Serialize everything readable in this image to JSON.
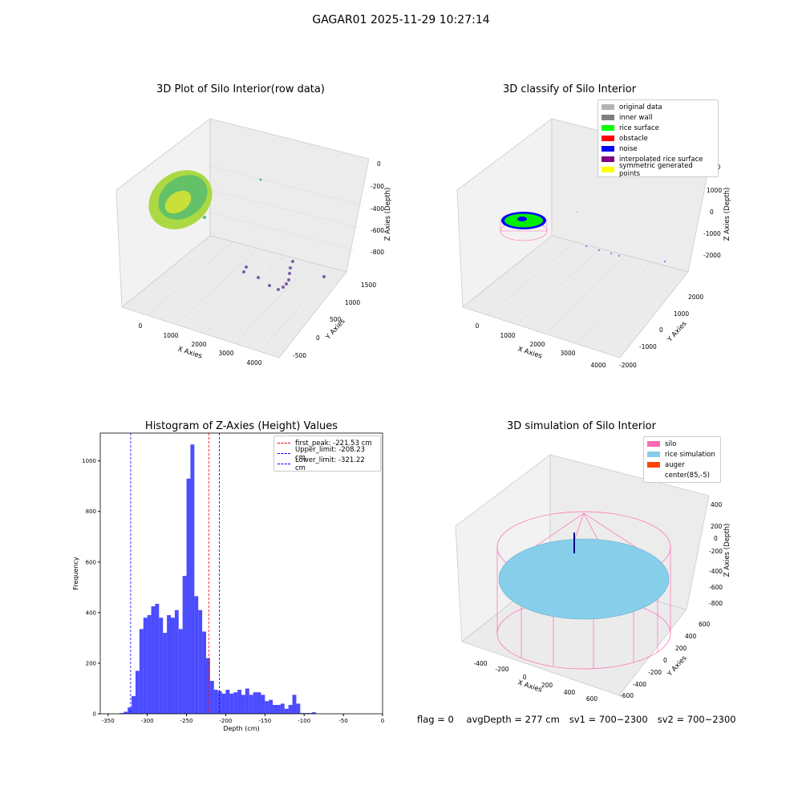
{
  "suptitle": "GAGAR01 2025-11-29 10:27:14",
  "panels": {
    "raw": {
      "title": "3D Plot of Silo Interior(row data)",
      "xlabel": "X Axies",
      "ylabel": "Y Axies",
      "zlabel": "Z Axies (Depth)",
      "xticks": [
        "0",
        "1000",
        "2000",
        "3000",
        "4000"
      ],
      "yticks": [
        "-500",
        "0",
        "500",
        "1000",
        "1500"
      ],
      "zticks": [
        "0",
        "-200",
        "-400",
        "-600",
        "-800"
      ]
    },
    "classify": {
      "title": "3D classify of Silo Interior",
      "xlabel": "X Axies",
      "ylabel": "Y Axies",
      "zlabel": "Z Axies (Depth)",
      "xticks": [
        "0",
        "1000",
        "2000",
        "3000",
        "4000"
      ],
      "yticks": [
        "-2000",
        "-1000",
        "0",
        "1000",
        "2000"
      ],
      "zticks": [
        "2000",
        "1000",
        "0",
        "-1000",
        "-2000"
      ],
      "zticks_partial": "200",
      "legend": [
        {
          "label": "original data",
          "color": "#b3b3b3"
        },
        {
          "label": "inner wall",
          "color": "#808080"
        },
        {
          "label": "rice surface",
          "color": "#00ff00"
        },
        {
          "label": "obstacle",
          "color": "#ff0000"
        },
        {
          "label": "noise",
          "color": "#0000ff"
        },
        {
          "label": "interpolated rice surface",
          "color": "#800080"
        },
        {
          "label": "symmetric generated points",
          "color": "#ffff00"
        }
      ]
    },
    "simulation": {
      "title": "3D simulation of Silo Interior",
      "xlabel": "X Axies",
      "ylabel": "Y Axies",
      "zlabel": "Z Axies (Depth)",
      "xticks": [
        "-400",
        "-200",
        "0",
        "200",
        "400",
        "600"
      ],
      "yticks": [
        "-600",
        "-400",
        "-200",
        "0",
        "200",
        "400",
        "600"
      ],
      "zticks": [
        "400",
        "200",
        "0",
        "-200",
        "-400",
        "-600",
        "-800"
      ],
      "legend": [
        {
          "label": "silo",
          "color": "#ff69b4"
        },
        {
          "label": "rice simulation",
          "color": "#87ceeb"
        },
        {
          "label": "auger",
          "color": "#ff4500"
        },
        {
          "label": "center(85,-5)",
          "color": ""
        }
      ]
    }
  },
  "chart_data": [
    {
      "type": "bar",
      "title": "Histogram of Z-Axies (Height) Values",
      "xlabel": "Depth (cm)",
      "ylabel": "Frequency",
      "xlim": [
        -360,
        0
      ],
      "ylim": [
        0,
        1110
      ],
      "grid": false,
      "legend_position": "top-right",
      "bar_color": "#0000ff",
      "bin_start": -335,
      "bin_width": 5,
      "values": [
        3,
        8,
        25,
        70,
        170,
        335,
        380,
        390,
        425,
        435,
        380,
        320,
        390,
        380,
        410,
        335,
        545,
        930,
        1065,
        465,
        410,
        325,
        220,
        130,
        95,
        90,
        80,
        95,
        80,
        85,
        95,
        75,
        100,
        75,
        85,
        85,
        75,
        50,
        55,
        35,
        35,
        40,
        20,
        35,
        75,
        40,
        3,
        3,
        3,
        6
      ],
      "xticks": [
        "-350",
        "-300",
        "-250",
        "-200",
        "-150",
        "-100",
        "-50",
        "0"
      ],
      "yticks": [
        "0",
        "200",
        "400",
        "600",
        "800",
        "1000"
      ],
      "vlines": [
        {
          "label": "first_peak: -221.53 cm",
          "x": -221.53,
          "color": "#ff0000"
        },
        {
          "label": "Upper_limit: -208.23 cm",
          "x": -208.23,
          "color": "#0000ff"
        },
        {
          "label": "Lower_limit: -321.22 cm",
          "x": -321.22,
          "color": "#0000ff"
        }
      ]
    }
  ],
  "footer": {
    "flag": "flag = 0",
    "avg": "avgDepth = 277 cm",
    "sv1": "sv1 = 700~2300",
    "sv2": "sv2 = 700~2300"
  }
}
